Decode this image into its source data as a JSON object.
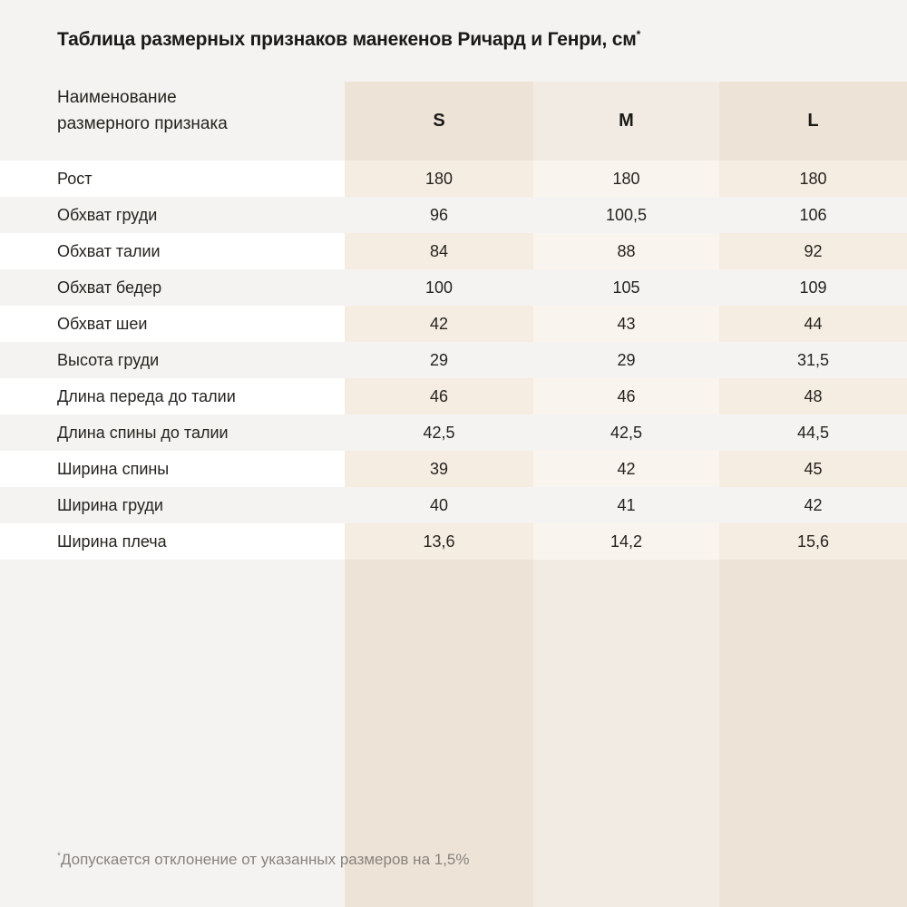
{
  "title": {
    "text": "Таблица размерных признаков манекенов Ричард и Генри, см",
    "superscript": "*"
  },
  "table": {
    "header": {
      "label_line1": "Наименование",
      "label_line2": "размерного признака",
      "columns": [
        "S",
        "M",
        "L"
      ]
    },
    "rows": [
      {
        "label": "Рост",
        "values": [
          "180",
          "180",
          "180"
        ]
      },
      {
        "label": "Обхват груди",
        "values": [
          "96",
          "100,5",
          "106"
        ]
      },
      {
        "label": "Обхват талии",
        "values": [
          "84",
          "88",
          "92"
        ]
      },
      {
        "label": "Обхват бедер",
        "values": [
          "100",
          "105",
          "109"
        ]
      },
      {
        "label": "Обхват шеи",
        "values": [
          "42",
          "43",
          "44"
        ]
      },
      {
        "label": "Высота груди",
        "values": [
          "29",
          "29",
          "31,5"
        ]
      },
      {
        "label": "Длина переда до талии",
        "values": [
          "46",
          "46",
          "48"
        ]
      },
      {
        "label": "Длина спины до талии",
        "values": [
          "42,5",
          "42,5",
          "44,5"
        ]
      },
      {
        "label": "Ширина спины",
        "values": [
          "39",
          "42",
          "45"
        ]
      },
      {
        "label": "Ширина груди",
        "values": [
          "40",
          "41",
          "42"
        ]
      },
      {
        "label": "Ширина плеча",
        "values": [
          "13,6",
          "14,2",
          "15,6"
        ]
      }
    ]
  },
  "footnote": {
    "superscript": "*",
    "text": "Допускается отклонение от указанных размеров на 1,5%"
  },
  "colors": {
    "page_bg": "#f5f3f1",
    "row_white": "#ffffff",
    "stripe_strong": "#eee3d7",
    "stripe_light": "#f2ebe3",
    "title_text": "#1b1a18",
    "footnote_text": "#87837e"
  }
}
